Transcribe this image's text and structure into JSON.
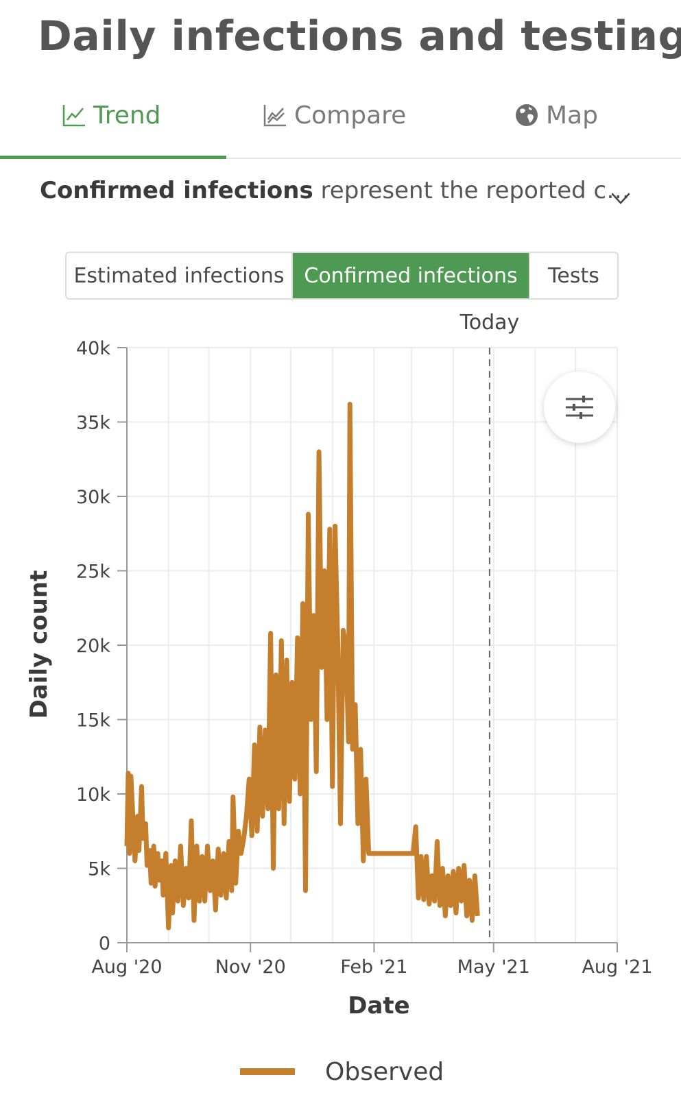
{
  "header": {
    "title": "Daily infections and testing",
    "external_icon": "external-link-icon"
  },
  "tabs": [
    {
      "label": "Trend",
      "icon": "trend-line-icon",
      "active": true
    },
    {
      "label": "Compare",
      "icon": "compare-chart-icon",
      "active": false
    },
    {
      "label": "Map",
      "icon": "globe-icon",
      "active": false
    }
  ],
  "description": {
    "bold": "Confirmed infections",
    "rest": " represent the reported c…",
    "expand_icon": "chevron-down-icon"
  },
  "segments": [
    {
      "label": "Estimated infections",
      "active": false
    },
    {
      "label": "Confirmed infections",
      "active": true
    },
    {
      "label": "Tests",
      "active": false
    }
  ],
  "colors": {
    "accent": "#4f9a52",
    "series": "#c47e2c"
  },
  "filter_icon": "sliders-icon",
  "chart_data": {
    "type": "line",
    "xlabel": "Date",
    "ylabel": "Daily count",
    "ylim": [
      0,
      40000
    ],
    "yticks": [
      0,
      5000,
      10000,
      15000,
      20000,
      25000,
      30000,
      35000,
      40000
    ],
    "ytick_labels": [
      "0",
      "5k",
      "10k",
      "15k",
      "20k",
      "25k",
      "30k",
      "35k",
      "40k"
    ],
    "xlim": [
      "2020-08-01",
      "2021-08-01"
    ],
    "xticks": [
      "2020-08-01",
      "2020-11-01",
      "2021-02-01",
      "2021-05-01",
      "2021-08-01"
    ],
    "xtick_labels": [
      "Aug '20",
      "Nov '20",
      "Feb '21",
      "May '21",
      "Aug '21"
    ],
    "today": {
      "date": "2021-04-28",
      "label": "Today"
    },
    "grid": true,
    "legend_position": "bottom",
    "series": [
      {
        "name": "Observed",
        "points": [
          [
            "2020-08-01",
            6500
          ],
          [
            "2020-08-02",
            11400
          ],
          [
            "2020-08-03",
            6000
          ],
          [
            "2020-08-04",
            11200
          ],
          [
            "2020-08-06",
            7500
          ],
          [
            "2020-08-07",
            5500
          ],
          [
            "2020-08-09",
            8500
          ],
          [
            "2020-08-10",
            6200
          ],
          [
            "2020-08-12",
            10500
          ],
          [
            "2020-08-13",
            7000
          ],
          [
            "2020-08-15",
            8000
          ],
          [
            "2020-08-16",
            5200
          ],
          [
            "2020-08-18",
            6200
          ],
          [
            "2020-08-19",
            4000
          ],
          [
            "2020-08-21",
            6500
          ],
          [
            "2020-08-22",
            3800
          ],
          [
            "2020-08-24",
            6000
          ],
          [
            "2020-08-25",
            4200
          ],
          [
            "2020-08-27",
            5500
          ],
          [
            "2020-08-28",
            3200
          ],
          [
            "2020-08-30",
            6000
          ],
          [
            "2020-09-01",
            1000
          ],
          [
            "2020-09-03",
            5200
          ],
          [
            "2020-09-04",
            2000
          ],
          [
            "2020-09-06",
            5500
          ],
          [
            "2020-09-08",
            2800
          ],
          [
            "2020-09-10",
            6500
          ],
          [
            "2020-09-12",
            2500
          ],
          [
            "2020-09-14",
            5000
          ],
          [
            "2020-09-16",
            3000
          ],
          [
            "2020-09-18",
            8200
          ],
          [
            "2020-09-20",
            1500
          ],
          [
            "2020-09-22",
            6500
          ],
          [
            "2020-09-24",
            2800
          ],
          [
            "2020-09-26",
            5800
          ],
          [
            "2020-09-28",
            2800
          ],
          [
            "2020-09-30",
            6500
          ],
          [
            "2020-10-02",
            3500
          ],
          [
            "2020-10-04",
            5500
          ],
          [
            "2020-10-06",
            2200
          ],
          [
            "2020-10-08",
            6300
          ],
          [
            "2020-10-10",
            3200
          ],
          [
            "2020-10-12",
            6000
          ],
          [
            "2020-10-14",
            3000
          ],
          [
            "2020-10-16",
            6800
          ],
          [
            "2020-10-18",
            3500
          ],
          [
            "2020-10-19",
            9800
          ],
          [
            "2020-10-21",
            4000
          ],
          [
            "2020-10-23",
            7500
          ],
          [
            "2020-10-25",
            6000
          ],
          [
            "2020-10-27",
            7000
          ],
          [
            "2020-10-29",
            8500
          ],
          [
            "2020-10-31",
            11000
          ],
          [
            "2020-11-02",
            7200
          ],
          [
            "2020-11-04",
            13300
          ],
          [
            "2020-11-06",
            7500
          ],
          [
            "2020-11-08",
            14500
          ],
          [
            "2020-11-10",
            8500
          ],
          [
            "2020-11-12",
            14300
          ],
          [
            "2020-11-14",
            9000
          ],
          [
            "2020-11-16",
            20800
          ],
          [
            "2020-11-18",
            5000
          ],
          [
            "2020-11-20",
            18000
          ],
          [
            "2020-11-22",
            9000
          ],
          [
            "2020-11-24",
            20300
          ],
          [
            "2020-11-26",
            8000
          ],
          [
            "2020-11-28",
            19000
          ],
          [
            "2020-11-30",
            9500
          ],
          [
            "2020-12-02",
            17500
          ],
          [
            "2020-12-04",
            11000
          ],
          [
            "2020-12-06",
            20500
          ],
          [
            "2020-12-08",
            10000
          ],
          [
            "2020-12-10",
            22800
          ],
          [
            "2020-12-12",
            3500
          ],
          [
            "2020-12-14",
            28800
          ],
          [
            "2020-12-16",
            15000
          ],
          [
            "2020-12-18",
            22000
          ],
          [
            "2020-12-20",
            11500
          ],
          [
            "2020-12-22",
            33000
          ],
          [
            "2020-12-24",
            18500
          ],
          [
            "2020-12-26",
            25000
          ],
          [
            "2020-12-28",
            15000
          ],
          [
            "2020-12-30",
            27800
          ],
          [
            "2021-01-01",
            10500
          ],
          [
            "2021-01-03",
            28000
          ],
          [
            "2021-01-05",
            20000
          ],
          [
            "2021-01-07",
            8000
          ],
          [
            "2021-01-09",
            21000
          ],
          [
            "2021-01-11",
            20000
          ],
          [
            "2021-01-13",
            13500
          ],
          [
            "2021-01-14",
            36200
          ],
          [
            "2021-01-16",
            13000
          ],
          [
            "2021-01-18",
            16000
          ],
          [
            "2021-01-20",
            8000
          ],
          [
            "2021-01-22",
            13000
          ],
          [
            "2021-01-24",
            5500
          ],
          [
            "2021-01-26",
            11000
          ],
          [
            "2021-01-28",
            6000
          ],
          [
            "2021-03-02",
            6000
          ],
          [
            "2021-03-04",
            7800
          ],
          [
            "2021-03-06",
            3000
          ],
          [
            "2021-03-08",
            5800
          ],
          [
            "2021-03-10",
            2900
          ],
          [
            "2021-03-12",
            5800
          ],
          [
            "2021-03-14",
            2600
          ],
          [
            "2021-03-16",
            4500
          ],
          [
            "2021-03-18",
            2800
          ],
          [
            "2021-03-20",
            6800
          ],
          [
            "2021-03-22",
            2500
          ],
          [
            "2021-03-24",
            5000
          ],
          [
            "2021-03-26",
            1800
          ],
          [
            "2021-03-28",
            4500
          ],
          [
            "2021-03-30",
            2500
          ],
          [
            "2021-04-01",
            4800
          ],
          [
            "2021-04-03",
            2000
          ],
          [
            "2021-04-05",
            5000
          ],
          [
            "2021-04-07",
            2800
          ],
          [
            "2021-04-09",
            5200
          ],
          [
            "2021-04-11",
            1800
          ],
          [
            "2021-04-13",
            4200
          ],
          [
            "2021-04-15",
            1500
          ],
          [
            "2021-04-17",
            4500
          ],
          [
            "2021-04-19",
            1800
          ]
        ]
      }
    ]
  }
}
